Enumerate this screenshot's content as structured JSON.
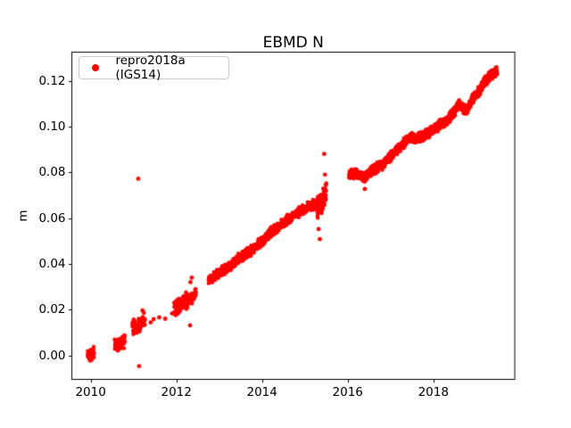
{
  "chart_data": {
    "type": "scatter",
    "title": "EBMD N",
    "xlabel": "",
    "ylabel": "m",
    "grid": false,
    "legend_position": "upper left",
    "xlim": [
      2009.56,
      2019.9
    ],
    "ylim": [
      -0.0105,
      0.1325
    ],
    "xtick_labels": [
      "2010",
      "2012",
      "2014",
      "2016",
      "2018"
    ],
    "ytick_labels": [
      "0.00",
      "0.02",
      "0.04",
      "0.06",
      "0.08",
      "0.10",
      "0.12"
    ],
    "axis_color": "#000000",
    "background_color": "#ffffff",
    "series": [
      {
        "name": "repro2018a (IGS14)",
        "color": "#ff0000",
        "marker": "dot",
        "marker_radius_px": 2.2,
        "trend_segments": [
          {
            "path": [
              [
                2009.93,
                0.0002
              ],
              [
                2010.08,
                0.001
              ]
            ],
            "amp": 0.0026,
            "n": 48
          },
          {
            "path": [
              [
                2010.56,
                0.0044
              ],
              [
                2010.8,
                0.0061
              ]
            ],
            "amp": 0.0031,
            "n": 55
          },
          {
            "path": [
              [
                2010.97,
                0.0124
              ],
              [
                2011.27,
                0.0143
              ]
            ],
            "amp": 0.0031,
            "n": 62
          },
          {
            "path": [
              [
                2011.95,
                0.021
              ],
              [
                2012.3,
                0.0241
              ]
            ],
            "amp": 0.0036,
            "n": 115
          },
          {
            "path": [
              [
                2012.32,
                0.025
              ],
              [
                2012.46,
                0.0262
              ]
            ],
            "amp": 0.0027,
            "n": 30
          },
          {
            "path": [
              [
                2012.75,
                0.0328
              ],
              [
                2013.0,
                0.0362
              ],
              [
                2013.2,
                0.038
              ],
              [
                2013.45,
                0.0422
              ],
              [
                2013.7,
                0.0452
              ],
              [
                2013.95,
                0.0492
              ],
              [
                2014.2,
                0.0535
              ],
              [
                2014.45,
                0.0572
              ],
              [
                2014.7,
                0.0607
              ],
              [
                2014.9,
                0.0632
              ],
              [
                2015.1,
                0.065
              ],
              [
                2015.28,
                0.0663
              ]
            ],
            "amp": 0.0021,
            "n": 660
          },
          {
            "path": [
              [
                2015.28,
                0.0642
              ],
              [
                2015.5,
                0.0702
              ]
            ],
            "amp": 0.005,
            "n": 85
          },
          {
            "path": [
              [
                2016.03,
                0.0788
              ],
              [
                2016.2,
                0.0798
              ],
              [
                2016.38,
                0.0774
              ],
              [
                2016.55,
                0.0806
              ],
              [
                2016.8,
                0.0833
              ],
              [
                2017.0,
                0.0868
              ],
              [
                2017.2,
                0.0908
              ],
              [
                2017.45,
                0.0952
              ],
              [
                2017.62,
                0.0946
              ],
              [
                2017.85,
                0.0968
              ],
              [
                2018.05,
                0.0992
              ],
              [
                2018.25,
                0.1018
              ],
              [
                2018.45,
                0.1054
              ],
              [
                2018.6,
                0.1098
              ],
              [
                2018.75,
                0.1068
              ],
              [
                2018.95,
                0.1128
              ],
              [
                2019.15,
                0.118
              ],
              [
                2019.3,
                0.1218
              ],
              [
                2019.42,
                0.1236
              ],
              [
                2019.49,
                0.1247
              ]
            ],
            "amp": 0.0021,
            "n": 1270
          }
        ],
        "isolated_points": [
          [
            2011.11,
            0.0772
          ],
          [
            2011.13,
            -0.0047
          ],
          [
            2011.21,
            0.0196
          ],
          [
            2011.24,
            0.0186
          ],
          [
            2011.4,
            0.0144
          ],
          [
            2011.47,
            0.0158
          ],
          [
            2011.6,
            0.0166
          ],
          [
            2011.74,
            0.016
          ],
          [
            2011.9,
            0.0183
          ],
          [
            2012.32,
            0.0131
          ],
          [
            2012.33,
            0.032
          ],
          [
            2012.36,
            0.034
          ],
          [
            2015.32,
            0.0552
          ],
          [
            2015.35,
            0.0508
          ],
          [
            2015.45,
            0.088
          ],
          [
            2015.47,
            0.079
          ],
          [
            2016.4,
            0.0727
          ]
        ]
      }
    ]
  }
}
